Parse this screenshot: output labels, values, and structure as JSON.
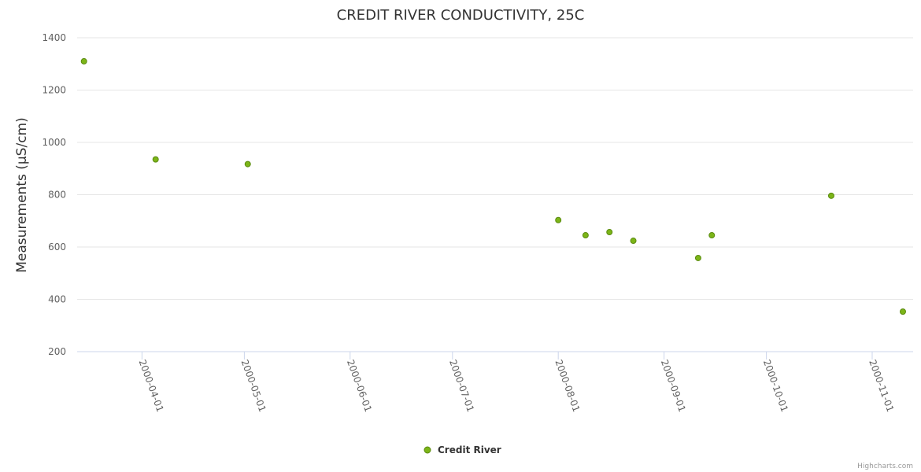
{
  "chart_data": {
    "type": "scatter",
    "title": "CREDIT RIVER CONDUCTIVITY, 25C",
    "xlabel": "",
    "ylabel": "Measurements (µS/cm)",
    "ylim": [
      200,
      1400
    ],
    "yticks": [
      200,
      400,
      600,
      800,
      1000,
      1200,
      1400
    ],
    "xlim": [
      "2000-03-13",
      "2000-11-13"
    ],
    "xticks": [
      "2000-04-01",
      "2000-05-01",
      "2000-06-01",
      "2000-07-01",
      "2000-08-01",
      "2000-09-01",
      "2000-10-01",
      "2000-11-01"
    ],
    "grid": true,
    "legend_placement": "bottom-center",
    "series": [
      {
        "name": "Credit River",
        "color": "#7cb518",
        "points": [
          {
            "x": "2000-03-15",
            "y": 1310
          },
          {
            "x": "2000-04-05",
            "y": 935
          },
          {
            "x": "2000-05-02",
            "y": 917
          },
          {
            "x": "2000-08-01",
            "y": 703
          },
          {
            "x": "2000-08-09",
            "y": 645
          },
          {
            "x": "2000-08-16",
            "y": 657
          },
          {
            "x": "2000-08-23",
            "y": 624
          },
          {
            "x": "2000-09-11",
            "y": 558
          },
          {
            "x": "2000-09-15",
            "y": 645
          },
          {
            "x": "2000-10-20",
            "y": 796
          },
          {
            "x": "2000-11-10",
            "y": 353
          }
        ]
      }
    ]
  },
  "credits": "Highcharts.com"
}
